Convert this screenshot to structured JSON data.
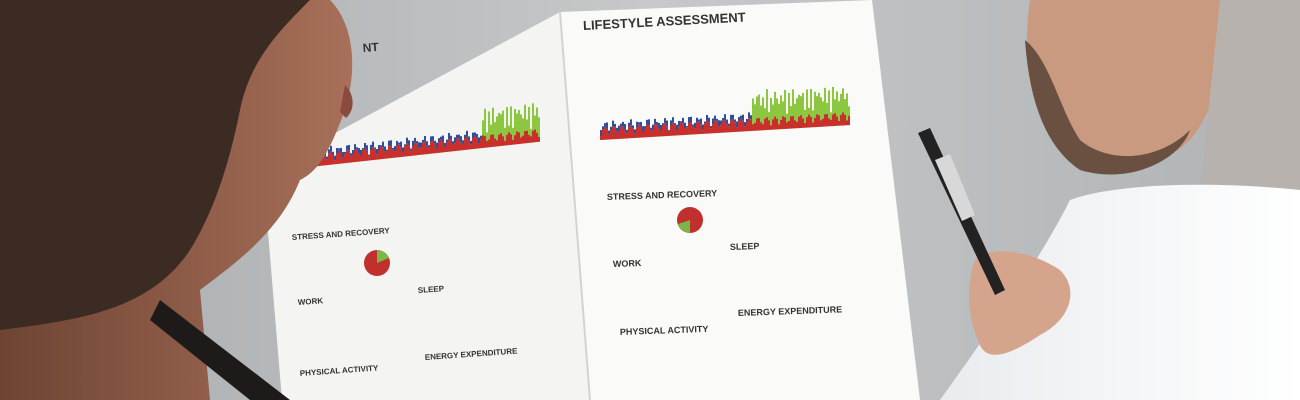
{
  "left_page": {
    "title_fragment": "NT",
    "sections": [
      "STRESS AND RECOVERY",
      "WORK",
      "SLEEP",
      "PHYSICAL ACTIVITY",
      "ENERGY EXPENDITURE"
    ]
  },
  "right_page": {
    "title": "LIFESTYLE ASSESSMENT",
    "sections": [
      "STRESS AND RECOVERY",
      "SLEEP",
      "WORK",
      "PHYSICAL ACTIVITY",
      "ENERGY EXPENDITURE"
    ]
  }
}
